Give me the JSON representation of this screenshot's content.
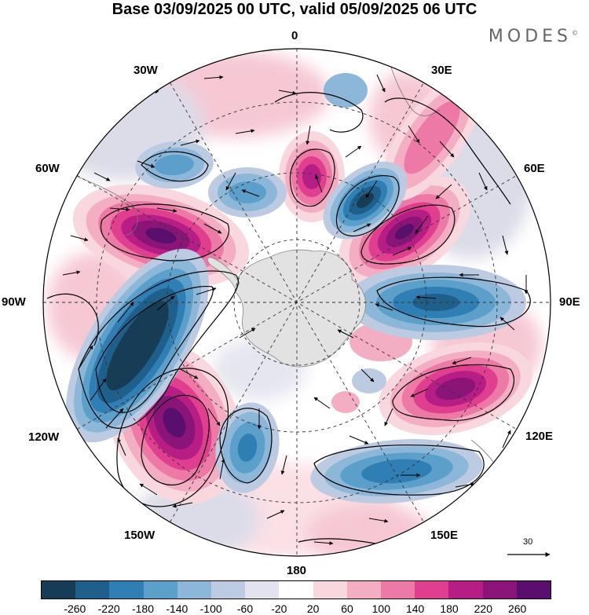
{
  "title": "Base 03/09/2025 00 UTC, valid 05/09/2025 06 UTC",
  "brand": "MODES",
  "brand_mark": "©",
  "longitude_labels": {
    "n0": "0",
    "e30": "30E",
    "e60": "60E",
    "e90": "90E",
    "e120": "120E",
    "e150": "150E",
    "s180": "180",
    "w150": "150W",
    "w120": "120W",
    "w90": "90W",
    "w60": "60W",
    "w30": "30W"
  },
  "reference_vector": {
    "value": "30"
  },
  "colorbar": {
    "colors": [
      "#173d56",
      "#1f5f8b",
      "#2f7fb4",
      "#5b9fca",
      "#8cb7d8",
      "#bccbe2",
      "#e3e3ef",
      "#ffffff",
      "#f9d7df",
      "#f4aec3",
      "#ed7aa6",
      "#df3f8e",
      "#b61e85",
      "#8a1478",
      "#5a0f6f"
    ],
    "ticks": [
      "-260",
      "-220",
      "-180",
      "-140",
      "-100",
      "-60",
      "-20",
      "20",
      "60",
      "100",
      "140",
      "180",
      "220",
      "260"
    ]
  },
  "map_data": {
    "projection": "south polar stereographic",
    "field": "geopotential height anomaly with wind vectors",
    "anomaly_centers": [
      {
        "lon_lat": [
          -150,
          -48
        ],
        "value": 260
      },
      {
        "lon_lat": [
          -110,
          -45
        ],
        "value": -260
      },
      {
        "lon_lat": [
          -65,
          -55
        ],
        "value": 230
      },
      {
        "lon_lat": [
          45,
          -55
        ],
        "value": 230
      },
      {
        "lon_lat": [
          25,
          -55
        ],
        "value": -220
      },
      {
        "lon_lat": [
          0,
          -55
        ],
        "value": 180
      },
      {
        "lon_lat": [
          -20,
          -50
        ],
        "value": -120
      },
      {
        "lon_lat": [
          -45,
          -48
        ],
        "value": -120
      },
      {
        "lon_lat": [
          90,
          -55
        ],
        "value": -160
      },
      {
        "lon_lat": [
          115,
          -50
        ],
        "value": 220
      },
      {
        "lon_lat": [
          145,
          -48
        ],
        "value": -160
      },
      {
        "lon_lat": [
          -170,
          -60
        ],
        "value": -140
      }
    ]
  }
}
